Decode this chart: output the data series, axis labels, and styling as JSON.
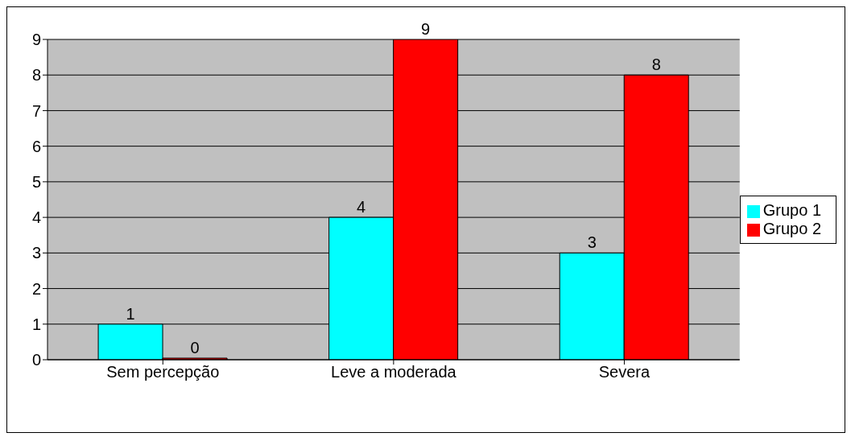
{
  "chart_data": {
    "type": "bar",
    "categories": [
      "Sem percepção",
      "Leve a moderada",
      "Severa"
    ],
    "series": [
      {
        "name": "Grupo 1",
        "color": "#00ffff",
        "values": [
          1,
          4,
          3
        ]
      },
      {
        "name": "Grupo 2",
        "color": "#ff0000",
        "values": [
          0,
          9,
          8
        ]
      }
    ],
    "ylim": [
      0,
      9
    ],
    "yticks": [
      0,
      1,
      2,
      3,
      4,
      5,
      6,
      7,
      8,
      9
    ],
    "grid": "y",
    "legend": "right",
    "data_labels": true
  }
}
